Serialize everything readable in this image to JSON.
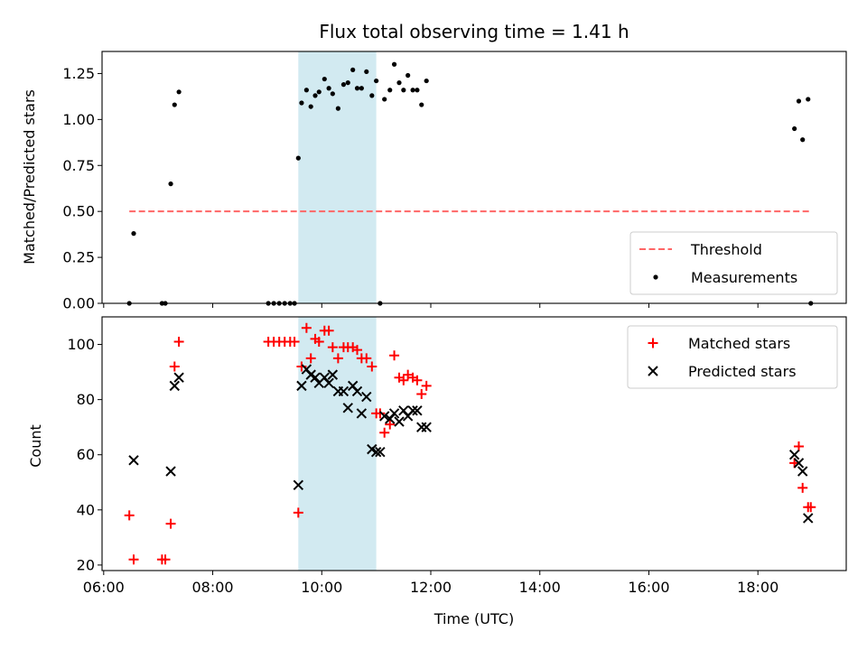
{
  "chart_data": [
    {
      "type": "scatter",
      "title": "Flux total observing time = 1.41 h",
      "ylabel": "Matched/Predicted stars",
      "xlabel": "",
      "x_unit": "hours UTC",
      "xlim": [
        5.97,
        19.62
      ],
      "ylim": [
        0.0,
        1.37
      ],
      "yticks": [
        0.0,
        0.25,
        0.5,
        0.75,
        1.0,
        1.25
      ],
      "ytick_labels": [
        "0.00",
        "0.25",
        "0.50",
        "0.75",
        "1.00",
        "1.25"
      ],
      "xticks": [
        6,
        8,
        10,
        12,
        14,
        16,
        18
      ],
      "legend_position": "lower right",
      "shaded_interval": [
        9.57,
        11.0
      ],
      "shade_color": "#add8e6",
      "threshold": {
        "name": "Threshold",
        "value": 0.5,
        "x_range": [
          6.47,
          18.95
        ],
        "color": "#ff6666",
        "style": "dashed"
      },
      "series": [
        {
          "name": "Measurements",
          "marker": "dot",
          "color": "#000000",
          "x": [
            6.47,
            6.55,
            7.07,
            7.13,
            7.23,
            7.3,
            7.38,
            9.02,
            9.12,
            9.22,
            9.32,
            9.42,
            9.5,
            9.57,
            9.63,
            9.72,
            9.8,
            9.88,
            9.95,
            10.05,
            10.13,
            10.2,
            10.3,
            10.4,
            10.48,
            10.57,
            10.65,
            10.73,
            10.82,
            10.92,
            11.0,
            11.07,
            11.15,
            11.25,
            11.33,
            11.42,
            11.5,
            11.58,
            11.67,
            11.75,
            11.83,
            11.92,
            18.67,
            18.75,
            18.82,
            18.92,
            18.97
          ],
          "y": [
            0.0,
            0.38,
            0.0,
            0.0,
            0.65,
            1.08,
            1.15,
            0.0,
            0.0,
            0.0,
            0.0,
            0.0,
            0.0,
            0.79,
            1.09,
            1.16,
            1.07,
            1.13,
            1.15,
            1.22,
            1.17,
            1.14,
            1.06,
            1.19,
            1.2,
            1.27,
            1.17,
            1.17,
            1.26,
            1.13,
            1.21,
            0.0,
            1.11,
            1.16,
            1.3,
            1.2,
            1.16,
            1.24,
            1.16,
            1.16,
            1.08,
            1.21,
            0.95,
            1.1,
            0.89,
            1.11,
            0.0
          ]
        }
      ]
    },
    {
      "type": "scatter",
      "title": "",
      "ylabel": "Count",
      "xlabel": "Time (UTC)",
      "x_unit": "hours UTC",
      "xlim": [
        5.97,
        19.62
      ],
      "ylim": [
        18,
        110
      ],
      "yticks": [
        20,
        40,
        60,
        80,
        100
      ],
      "ytick_labels": [
        "20",
        "40",
        "60",
        "80",
        "100"
      ],
      "xticks": [
        6,
        8,
        10,
        12,
        14,
        16,
        18
      ],
      "xtick_labels": [
        "06:00",
        "08:00",
        "10:00",
        "12:00",
        "14:00",
        "16:00",
        "18:00"
      ],
      "legend_position": "upper right",
      "shaded_interval": [
        9.57,
        11.0
      ],
      "shade_color": "#add8e6",
      "series": [
        {
          "name": "Matched stars",
          "marker": "plus",
          "color": "#ff0000",
          "x": [
            6.47,
            6.55,
            7.07,
            7.13,
            7.23,
            7.3,
            7.38,
            9.02,
            9.12,
            9.22,
            9.32,
            9.42,
            9.5,
            9.57,
            9.63,
            9.72,
            9.8,
            9.88,
            9.95,
            10.05,
            10.13,
            10.2,
            10.3,
            10.4,
            10.48,
            10.57,
            10.65,
            10.73,
            10.82,
            10.92,
            11.0,
            11.07,
            11.15,
            11.25,
            11.33,
            11.42,
            11.5,
            11.58,
            11.67,
            11.75,
            11.83,
            11.92,
            18.67,
            18.75,
            18.82,
            18.92,
            18.97
          ],
          "y": [
            38,
            22,
            22,
            22,
            35,
            92,
            101,
            101,
            101,
            101,
            101,
            101,
            101,
            39,
            92,
            106,
            95,
            102,
            101,
            105,
            105,
            99,
            95,
            99,
            99,
            99,
            98,
            95,
            95,
            92,
            75,
            75,
            68,
            71,
            96,
            88,
            87,
            89,
            88,
            87,
            82,
            85,
            57,
            63,
            48,
            41,
            41
          ]
        },
        {
          "name": "Predicted stars",
          "marker": "x",
          "color": "#000000",
          "x": [
            6.55,
            7.23,
            7.3,
            7.38,
            9.57,
            9.63,
            9.72,
            9.8,
            9.88,
            9.95,
            10.05,
            10.13,
            10.2,
            10.3,
            10.4,
            10.48,
            10.57,
            10.65,
            10.73,
            10.82,
            10.92,
            11.0,
            11.07,
            11.15,
            11.25,
            11.33,
            11.42,
            11.5,
            11.58,
            11.67,
            11.75,
            11.83,
            11.92,
            18.67,
            18.75,
            18.82,
            18.92
          ],
          "y": [
            58,
            54,
            85,
            88,
            49,
            85,
            91,
            89,
            88,
            86,
            88,
            86,
            89,
            83,
            83,
            77,
            85,
            83,
            75,
            81,
            62,
            61,
            61,
            74,
            73,
            75,
            72,
            76,
            74,
            76,
            76,
            70,
            70,
            60,
            57,
            54,
            37
          ]
        }
      ]
    }
  ]
}
